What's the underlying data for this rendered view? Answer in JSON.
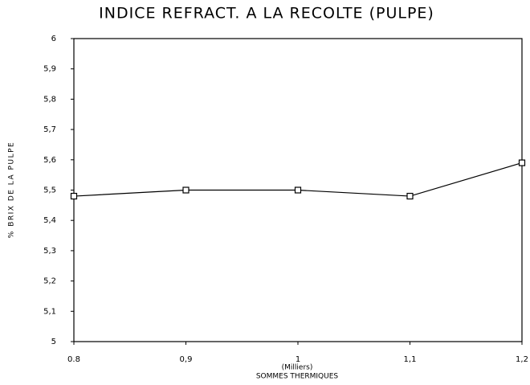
{
  "chart_data": {
    "type": "line",
    "title": "INDICE REFRACT. A LA RECOLTE (PULPE)",
    "xlabel_unit": "(Milliers)",
    "xlabel": "SOMMES THERMIQUES",
    "ylabel": "% BRIX DE LA PULPE",
    "x": [
      0.8,
      0.9,
      1,
      1.1,
      1.2
    ],
    "values": [
      5.48,
      5.5,
      5.5,
      5.48,
      5.59
    ],
    "color": "#000000",
    "marker": "square",
    "xlim": [
      0.8,
      1.2
    ],
    "xticks": [
      0.8,
      {
        "value": 0.9,
        "label": "0,9"
      },
      1,
      {
        "value": 1.1,
        "label": "1,1"
      },
      {
        "value": 1.2,
        "label": "1,2"
      }
    ],
    "ylim": [
      5,
      6
    ],
    "yticks": [
      5,
      {
        "value": 5.1,
        "label": "5,1"
      },
      {
        "value": 5.2,
        "label": "5,2"
      },
      {
        "value": 5.3,
        "label": "5,3"
      },
      {
        "value": 5.4,
        "label": "5,4"
      },
      {
        "value": 5.5,
        "label": "5,5"
      },
      {
        "value": 5.6,
        "label": "5,6"
      },
      {
        "value": 5.7,
        "label": "5,7"
      },
      {
        "value": 5.8,
        "label": "5,8"
      },
      {
        "value": 5.9,
        "label": "5,9"
      },
      6
    ],
    "grid": false
  }
}
